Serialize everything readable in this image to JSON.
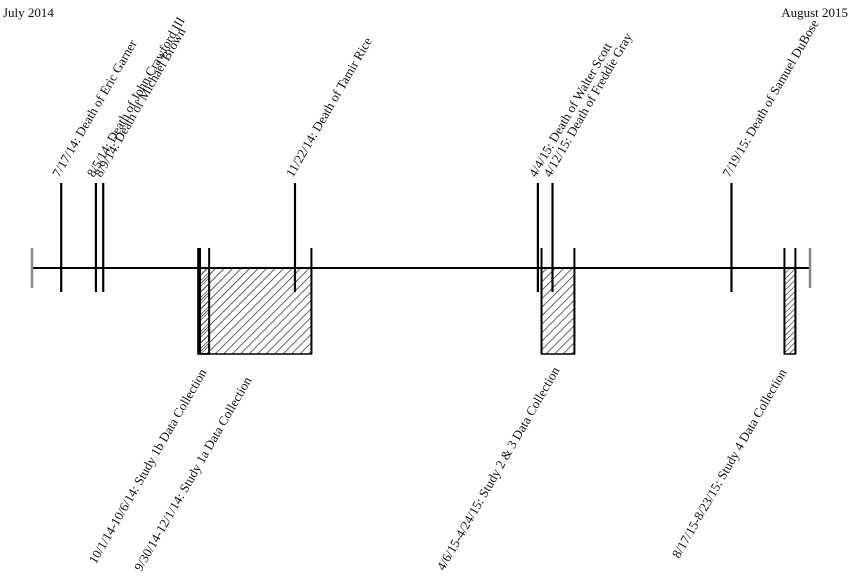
{
  "header": {
    "start_label": "July 2014",
    "end_label": "August 2015"
  },
  "timeline": {
    "start": "2014-07-01",
    "end": "2015-08-31"
  },
  "events": [
    {
      "date": "2014-07-17",
      "label": "7/17/14:  Death of Eric Garner"
    },
    {
      "date": "2014-08-05",
      "label": "8/5/14: Death of John Crawford III"
    },
    {
      "date": "2014-08-09",
      "label": "8/9/14: Death of Michael Brown"
    },
    {
      "date": "2014-11-22",
      "label": "11/22/14: Death of Tamir Rice"
    },
    {
      "date": "2015-04-04",
      "label": "4/4/15: Death of Walter Scott"
    },
    {
      "date": "2015-04-12",
      "label": "4/12/15: Death of Freddie Gray"
    },
    {
      "date": "2015-07-19",
      "label": "7/19/15: Death of Samuel DuBose"
    }
  ],
  "periods": [
    {
      "start": "2014-10-01",
      "end": "2014-10-06",
      "label": "10/1/14-10/6/14: Study 1b Data Collection"
    },
    {
      "start": "2014-09-30",
      "end": "2014-12-01",
      "label": "9/30/14-12/1/14: Study 1a Data Collection"
    },
    {
      "start": "2015-04-06",
      "end": "2015-04-24",
      "label": "4/6/15-4/24/15: Study 2 & 3 Data Collection"
    },
    {
      "start": "2015-08-17",
      "end": "2015-08-23",
      "label": "8/17/15-8/23/15: Study 4 Data Collection"
    }
  ]
}
